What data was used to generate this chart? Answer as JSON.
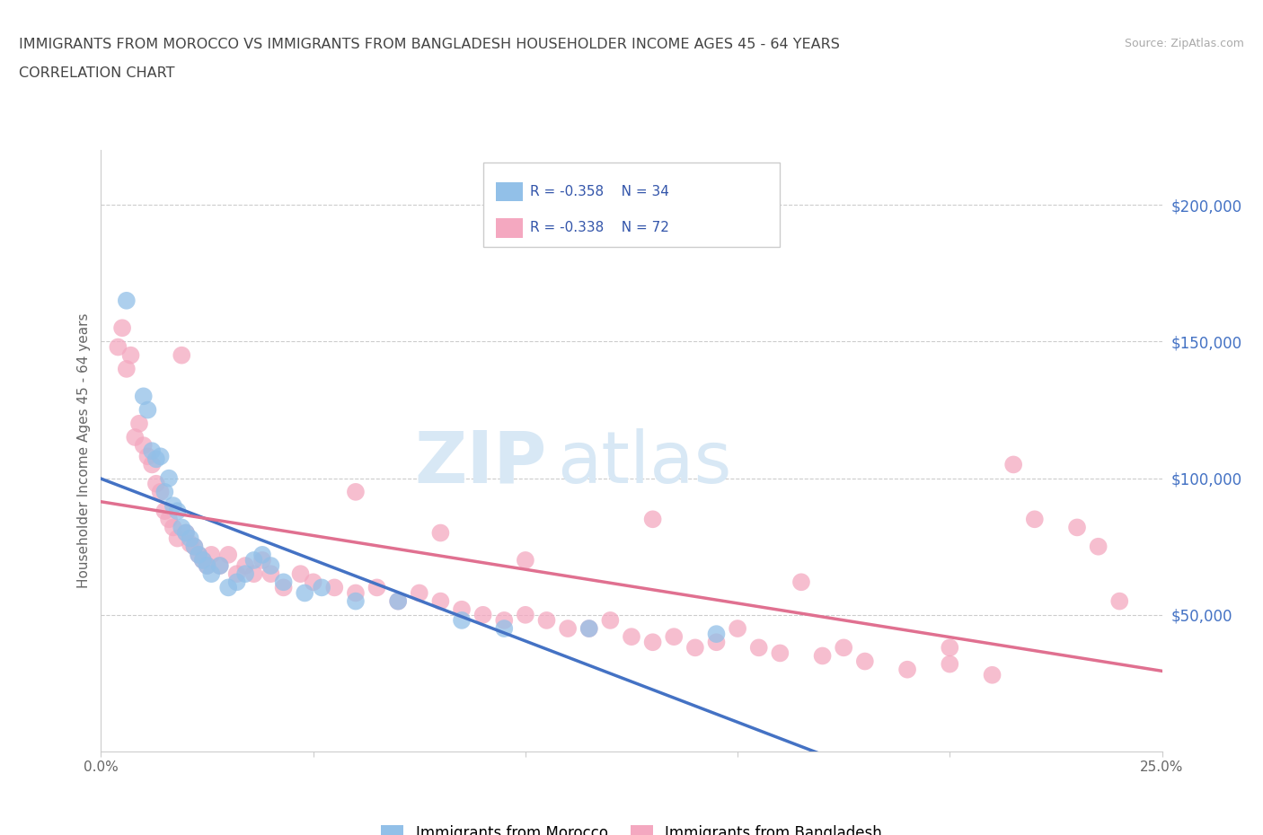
{
  "title_line1": "IMMIGRANTS FROM MOROCCO VS IMMIGRANTS FROM BANGLADESH HOUSEHOLDER INCOME AGES 45 - 64 YEARS",
  "title_line2": "CORRELATION CHART",
  "source_text": "Source: ZipAtlas.com",
  "ylabel": "Householder Income Ages 45 - 64 years",
  "xlim": [
    0.0,
    0.25
  ],
  "ylim": [
    0,
    220000
  ],
  "yticks": [
    50000,
    100000,
    150000,
    200000
  ],
  "yticklabels": [
    "$50,000",
    "$100,000",
    "$150,000",
    "$200,000"
  ],
  "morocco_color": "#92c0e8",
  "bangladesh_color": "#f4a8c0",
  "morocco_line_color": "#4472c4",
  "bangladesh_line_color": "#e07090",
  "legend_r_morocco": "R = -0.358",
  "legend_n_morocco": "N = 34",
  "legend_r_bangladesh": "R = -0.338",
  "legend_n_bangladesh": "N = 72",
  "legend_label_morocco": "Immigrants from Morocco",
  "legend_label_bangladesh": "Immigrants from Bangladesh",
  "watermark_zip": "ZIP",
  "watermark_atlas": "atlas",
  "morocco_x": [
    0.006,
    0.01,
    0.011,
    0.012,
    0.013,
    0.014,
    0.015,
    0.016,
    0.017,
    0.018,
    0.019,
    0.02,
    0.021,
    0.022,
    0.023,
    0.024,
    0.025,
    0.026,
    0.028,
    0.03,
    0.032,
    0.034,
    0.036,
    0.038,
    0.04,
    0.043,
    0.048,
    0.052,
    0.06,
    0.07,
    0.085,
    0.095,
    0.115,
    0.145
  ],
  "morocco_y": [
    165000,
    130000,
    125000,
    110000,
    107000,
    108000,
    95000,
    100000,
    90000,
    88000,
    82000,
    80000,
    78000,
    75000,
    72000,
    70000,
    68000,
    65000,
    68000,
    60000,
    62000,
    65000,
    70000,
    72000,
    68000,
    62000,
    58000,
    60000,
    55000,
    55000,
    48000,
    45000,
    45000,
    43000
  ],
  "bangladesh_x": [
    0.004,
    0.005,
    0.006,
    0.007,
    0.008,
    0.009,
    0.01,
    0.011,
    0.012,
    0.013,
    0.014,
    0.015,
    0.016,
    0.017,
    0.018,
    0.019,
    0.02,
    0.021,
    0.022,
    0.023,
    0.024,
    0.025,
    0.026,
    0.028,
    0.03,
    0.032,
    0.034,
    0.036,
    0.038,
    0.04,
    0.043,
    0.047,
    0.05,
    0.055,
    0.06,
    0.065,
    0.07,
    0.075,
    0.08,
    0.085,
    0.09,
    0.095,
    0.1,
    0.105,
    0.11,
    0.115,
    0.12,
    0.125,
    0.13,
    0.135,
    0.14,
    0.145,
    0.15,
    0.155,
    0.16,
    0.17,
    0.175,
    0.18,
    0.19,
    0.2,
    0.21,
    0.215,
    0.22,
    0.23,
    0.235,
    0.24,
    0.06,
    0.08,
    0.1,
    0.13,
    0.165,
    0.2
  ],
  "bangladesh_y": [
    148000,
    155000,
    140000,
    145000,
    115000,
    120000,
    112000,
    108000,
    105000,
    98000,
    95000,
    88000,
    85000,
    82000,
    78000,
    145000,
    80000,
    76000,
    75000,
    72000,
    70000,
    68000,
    72000,
    68000,
    72000,
    65000,
    68000,
    65000,
    70000,
    65000,
    60000,
    65000,
    62000,
    60000,
    58000,
    60000,
    55000,
    58000,
    55000,
    52000,
    50000,
    48000,
    50000,
    48000,
    45000,
    45000,
    48000,
    42000,
    40000,
    42000,
    38000,
    40000,
    45000,
    38000,
    36000,
    35000,
    38000,
    33000,
    30000,
    32000,
    28000,
    105000,
    85000,
    82000,
    75000,
    55000,
    95000,
    80000,
    70000,
    85000,
    62000,
    38000
  ]
}
